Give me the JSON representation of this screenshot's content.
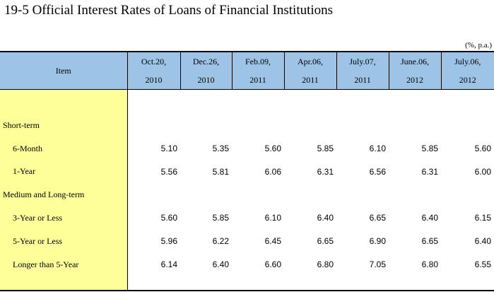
{
  "title": "19-5  Official Interest Rates of Loans of Financial Institutions",
  "unit_note": "(%, p.a.)",
  "table": {
    "item_header": "Item",
    "dates": [
      {
        "line1": "Oct.20,",
        "line2": "2010"
      },
      {
        "line1": "Dec.26,",
        "line2": "2010"
      },
      {
        "line1": "Feb.09,",
        "line2": "2011"
      },
      {
        "line1": "Apr.06,",
        "line2": "2011"
      },
      {
        "line1": "July.07,",
        "line2": "2011"
      },
      {
        "line1": "June.06,",
        "line2": "2012"
      },
      {
        "line1": "July.06,",
        "line2": "2012"
      }
    ],
    "rows": [
      {
        "label": "Short-term",
        "values": []
      },
      {
        "label": "6-Month",
        "values": [
          "5.10",
          "5.35",
          "5.60",
          "5.85",
          "6.10",
          "5.85",
          "5.60"
        ]
      },
      {
        "label": "1-Year",
        "values": [
          "5.56",
          "5.81",
          "6.06",
          "6.31",
          "6.56",
          "6.31",
          "6.00"
        ]
      },
      {
        "label": "Medium and Long-term",
        "values": []
      },
      {
        "label": "3-Year or Less",
        "values": [
          "5.60",
          "5.85",
          "6.10",
          "6.40",
          "6.65",
          "6.40",
          "6.15"
        ]
      },
      {
        "label": "5-Year or Less",
        "values": [
          "5.96",
          "6.22",
          "6.45",
          "6.65",
          "6.90",
          "6.65",
          "6.40"
        ]
      },
      {
        "label": "Longer than 5-Year",
        "values": [
          "6.14",
          "6.40",
          "6.60",
          "6.80",
          "7.05",
          "6.80",
          "6.55"
        ]
      }
    ]
  }
}
